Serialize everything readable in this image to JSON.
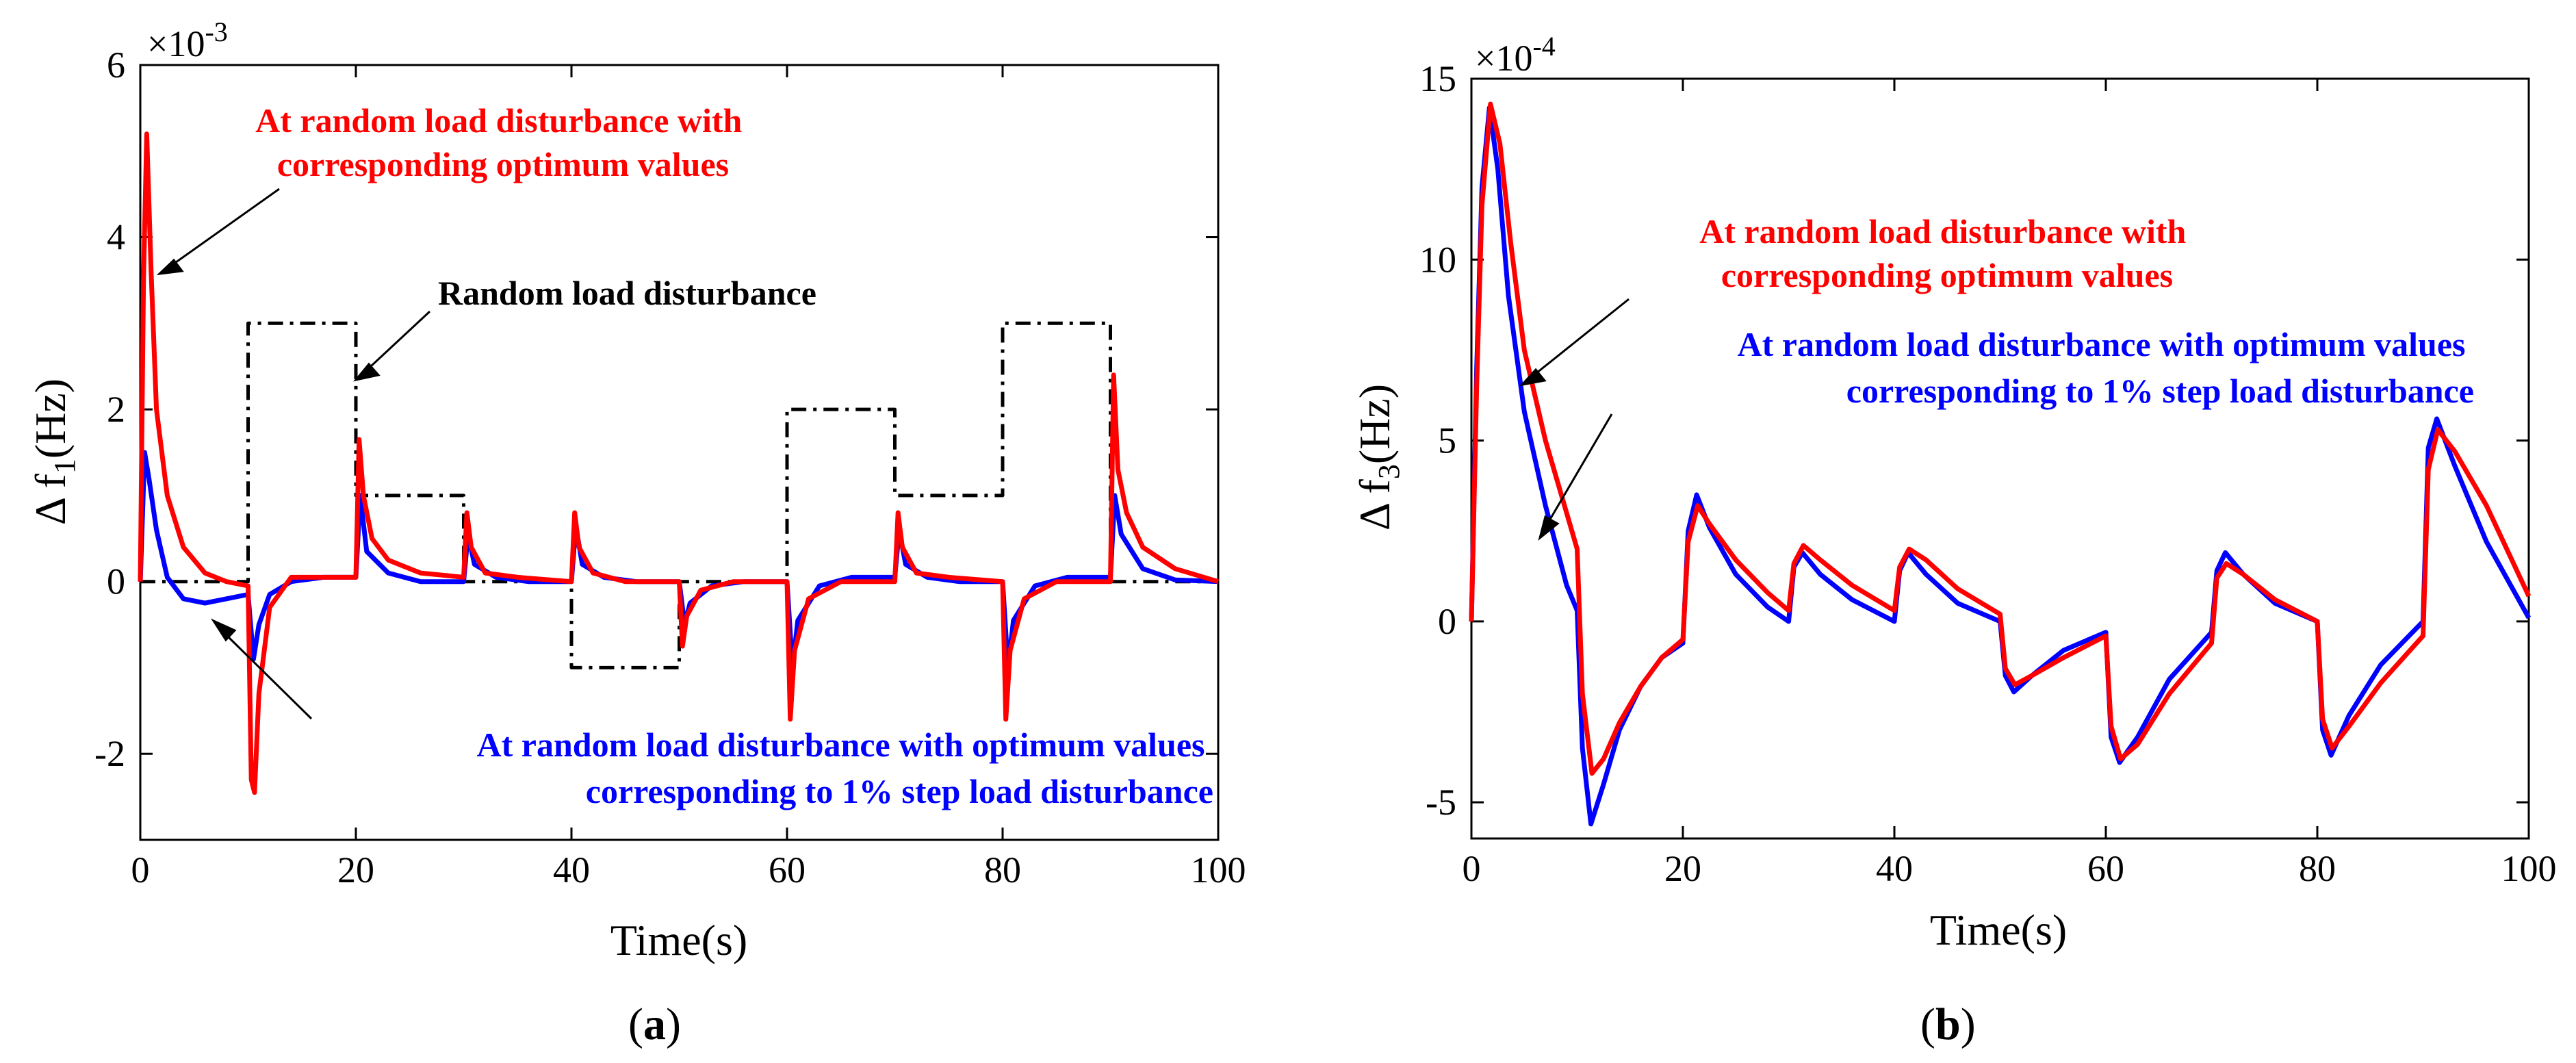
{
  "colors": {
    "optimum_random": "#ff0000",
    "optimum_step": "#0000ff",
    "disturbance": "#000000",
    "axes": "#000000",
    "background": "#ffffff"
  },
  "chart_data": [
    {
      "id": "a",
      "type": "line",
      "panel_label": "a",
      "xlabel": "Time(s)",
      "ylabel_prefix": "Δ f",
      "ylabel_sub": "1",
      "ylabel_suffix": "(Hz)",
      "y_multiplier": "×10",
      "y_multiplier_exponent": "-3",
      "xlim": [
        0,
        100
      ],
      "ylim": [
        -3,
        6
      ],
      "xticks": [
        0,
        20,
        40,
        60,
        80,
        100
      ],
      "xtick_labels": [
        "0",
        "20",
        "40",
        "60",
        "80",
        "100"
      ],
      "yticks": [
        -2,
        0,
        2,
        4,
        6
      ],
      "ytick_labels": [
        "-2",
        "0",
        "2",
        "4",
        "6"
      ],
      "grid": false,
      "series": [
        {
          "name": "Random load disturbance",
          "style": "dash-dot",
          "x": [
            0,
            10,
            10,
            20,
            20,
            30,
            30,
            40,
            40,
            50,
            50,
            60,
            60,
            70,
            70,
            80,
            80,
            90,
            90,
            100
          ],
          "y": [
            0,
            0,
            3,
            3,
            1,
            1,
            0,
            0,
            -1,
            -1,
            0,
            0,
            2,
            2,
            1,
            1,
            3,
            3,
            0,
            0
          ]
        },
        {
          "name": "At random load disturbance with optimum values corresponding to 1% step load disturbance",
          "style": "solid",
          "x": [
            0,
            0.4,
            0.8,
            1.5,
            2.5,
            4,
            6,
            8,
            10,
            10.5,
            11,
            12,
            14,
            17,
            20,
            20.4,
            21,
            23,
            26,
            30,
            30.4,
            31,
            33,
            36,
            40,
            40.4,
            41,
            43,
            46,
            50,
            50.5,
            51,
            53,
            56,
            60,
            60.5,
            61,
            63,
            66,
            70,
            70.4,
            71,
            73,
            76,
            80,
            80.5,
            81,
            83,
            86,
            90,
            90.4,
            91,
            93,
            96,
            100
          ],
          "y": [
            0,
            1.5,
            1.2,
            0.6,
            0.05,
            -0.2,
            -0.25,
            -0.2,
            -0.15,
            -0.9,
            -0.5,
            -0.15,
            0.0,
            0.05,
            0.05,
            1.0,
            0.35,
            0.1,
            0.0,
            0.0,
            0.55,
            0.2,
            0.05,
            0.0,
            0.0,
            0.65,
            0.2,
            0.05,
            0.0,
            0.0,
            -0.5,
            -0.25,
            -0.05,
            0.0,
            0.0,
            -1.0,
            -0.45,
            -0.05,
            0.05,
            0.05,
            0.6,
            0.2,
            0.05,
            0.0,
            0.0,
            -1.0,
            -0.45,
            -0.05,
            0.05,
            0.05,
            1.0,
            0.55,
            0.15,
            0.02,
            0.0
          ]
        },
        {
          "name": "At random load disturbance with corresponding optimum values",
          "style": "solid",
          "x": [
            0,
            0.3,
            0.6,
            1,
            1.5,
            2.5,
            4,
            6,
            8,
            10,
            10.3,
            10.6,
            11,
            12,
            14,
            17,
            20,
            20.3,
            20.7,
            21.5,
            23,
            26,
            30,
            30.3,
            30.7,
            32,
            35,
            40,
            40.3,
            40.7,
            42,
            45,
            50,
            50.3,
            50.7,
            52,
            55,
            60,
            60.3,
            60.7,
            62,
            65,
            70,
            70.3,
            70.7,
            72,
            75,
            80,
            80.3,
            80.7,
            82,
            85,
            90,
            90.3,
            90.7,
            91.5,
            93,
            96,
            100
          ],
          "y": [
            0,
            3.5,
            5.2,
            3.6,
            2.0,
            1.0,
            0.4,
            0.1,
            0.0,
            -0.05,
            -2.3,
            -2.45,
            -1.3,
            -0.3,
            0.05,
            0.05,
            0.05,
            1.65,
            1.0,
            0.5,
            0.25,
            0.1,
            0.05,
            0.8,
            0.4,
            0.1,
            0.05,
            0.0,
            0.8,
            0.4,
            0.1,
            0.0,
            0.0,
            -0.75,
            -0.4,
            -0.1,
            0.0,
            0.0,
            -1.6,
            -0.8,
            -0.2,
            0.0,
            0.0,
            0.8,
            0.4,
            0.1,
            0.05,
            0.0,
            -1.6,
            -0.8,
            -0.2,
            0.0,
            0.0,
            2.4,
            1.3,
            0.8,
            0.4,
            0.15,
            0.0
          ]
        }
      ],
      "annotations": [
        {
          "lines": [
            "At random load disturbance with",
            "corresponding optimum values"
          ],
          "color": "#ff0000",
          "anchor": "middle"
        },
        {
          "lines": [
            "Random load disturbance"
          ],
          "color": "#000000",
          "anchor": "start"
        },
        {
          "lines": [
            "At random load disturbance with optimum values",
            "corresponding to 1% step load disturbance"
          ],
          "color": "#0000ff",
          "anchor": "end"
        }
      ]
    },
    {
      "id": "b",
      "type": "line",
      "panel_label": "b",
      "xlabel": "Time(s)",
      "ylabel_prefix": "Δ f",
      "ylabel_sub": "3",
      "ylabel_suffix": "(Hz)",
      "y_multiplier": "×10",
      "y_multiplier_exponent": "-4",
      "xlim": [
        0,
        100
      ],
      "ylim": [
        -6,
        15
      ],
      "xticks": [
        0,
        20,
        40,
        60,
        80,
        100
      ],
      "xtick_labels": [
        "0",
        "20",
        "40",
        "60",
        "80",
        "100"
      ],
      "yticks": [
        -5,
        0,
        5,
        10,
        15
      ],
      "ytick_labels": [
        "-5",
        "0",
        "5",
        "10",
        "15"
      ],
      "grid": false,
      "series": [
        {
          "name": "At random load disturbance with optimum values corresponding to 1% step load disturbance",
          "style": "solid",
          "x": [
            0,
            0.5,
            1,
            1.7,
            2.5,
            3.5,
            5,
            7,
            9,
            10,
            10.5,
            11.3,
            12.5,
            14,
            16,
            18,
            20,
            20.5,
            21.3,
            22.5,
            25,
            28,
            30,
            30.5,
            31.3,
            33,
            36,
            40,
            40.5,
            41.3,
            43,
            46,
            50,
            50.5,
            51.3,
            53,
            56,
            60,
            60.5,
            61.3,
            63,
            66,
            70,
            70.5,
            71.3,
            73,
            76,
            80,
            80.5,
            81.3,
            83,
            86,
            90,
            90.5,
            91.3,
            93,
            96,
            100
          ],
          "y": [
            0,
            7,
            12,
            14.2,
            12.5,
            9.0,
            5.8,
            3.2,
            1.0,
            0.3,
            -3.5,
            -5.6,
            -4.5,
            -3.0,
            -1.8,
            -1.0,
            -0.6,
            2.5,
            3.5,
            2.6,
            1.3,
            0.4,
            0.0,
            1.5,
            1.9,
            1.3,
            0.6,
            0.0,
            1.4,
            1.9,
            1.3,
            0.5,
            0.0,
            -1.5,
            -1.95,
            -1.5,
            -0.8,
            -0.3,
            -3.2,
            -3.9,
            -3.2,
            -1.6,
            -0.3,
            1.4,
            1.9,
            1.3,
            0.5,
            0.0,
            -3.0,
            -3.7,
            -2.6,
            -1.2,
            0.0,
            4.8,
            5.6,
            4.3,
            2.2,
            0.1
          ]
        },
        {
          "name": "At random load disturbance with corresponding optimum values",
          "style": "solid",
          "x": [
            0,
            0.5,
            1,
            1.8,
            2.7,
            3.7,
            5,
            7,
            9,
            10,
            10.5,
            11.4,
            12.5,
            14,
            16,
            18,
            20,
            20.5,
            21.4,
            22.5,
            25,
            28,
            30,
            30.5,
            31.4,
            33,
            36,
            40,
            40.5,
            41.4,
            43,
            46,
            50,
            50.5,
            51.4,
            53,
            56,
            60,
            60.5,
            61.4,
            63,
            66,
            70,
            70.5,
            71.4,
            73,
            76,
            80,
            80.5,
            81.4,
            83,
            86,
            90,
            90.5,
            91.4,
            93,
            96,
            100
          ],
          "y": [
            0,
            6.5,
            11.5,
            14.3,
            13.2,
            10.5,
            7.5,
            5.0,
            3.0,
            2.0,
            -2.0,
            -4.2,
            -3.8,
            -2.8,
            -1.8,
            -1.0,
            -0.5,
            2.2,
            3.2,
            2.7,
            1.7,
            0.8,
            0.3,
            1.6,
            2.1,
            1.7,
            1.0,
            0.3,
            1.5,
            2.0,
            1.7,
            0.9,
            0.2,
            -1.3,
            -1.75,
            -1.5,
            -1.0,
            -0.4,
            -2.9,
            -3.8,
            -3.4,
            -2.0,
            -0.6,
            1.2,
            1.6,
            1.3,
            0.6,
            0.0,
            -2.7,
            -3.5,
            -2.9,
            -1.7,
            -0.4,
            4.2,
            5.3,
            4.7,
            3.2,
            0.7
          ]
        }
      ],
      "annotations": [
        {
          "lines": [
            "At random load disturbance with",
            "corresponding optimum values"
          ],
          "color": "#ff0000",
          "anchor": "middle"
        },
        {
          "lines": [
            "At random load disturbance with optimum values",
            "corresponding to 1% step load disturbance"
          ],
          "color": "#0000ff",
          "anchor": "end"
        }
      ]
    }
  ]
}
